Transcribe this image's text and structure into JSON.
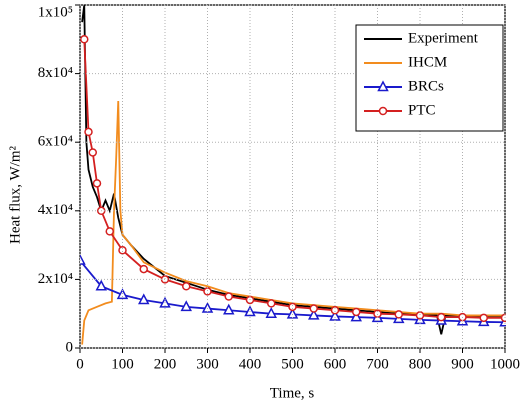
{
  "chart_data": {
    "type": "line",
    "x_label": "Time, s",
    "y_label": "Heat flux, W/m²",
    "xlim": [
      0,
      1000
    ],
    "xticks": [
      0,
      100,
      200,
      300,
      400,
      500,
      600,
      700,
      800,
      900,
      1000
    ],
    "ylim": [
      0,
      100000
    ],
    "yticks": [
      0,
      {
        "value": 20000,
        "label": "2x10⁴"
      },
      {
        "value": 40000,
        "label": "4x10⁴"
      },
      {
        "value": 60000,
        "label": "6x10⁴"
      },
      {
        "value": 80000,
        "label": "8x10⁴"
      },
      {
        "value": 100000,
        "label": "1x10⁵"
      }
    ],
    "grid": true,
    "legend": "top-right",
    "series": [
      {
        "name": "Experiment",
        "color": "#000000",
        "marker": "none",
        "x": [
          5,
          10,
          15,
          20,
          30,
          40,
          50,
          60,
          70,
          80,
          90,
          100,
          120,
          150,
          200,
          250,
          300,
          350,
          400,
          450,
          500,
          550,
          600,
          650,
          700,
          750,
          800,
          840,
          850,
          860,
          900,
          950,
          1000
        ],
        "values": [
          95000,
          100000,
          60000,
          52000,
          47000,
          44000,
          40000,
          43000,
          40000,
          45000,
          38000,
          33000,
          30000,
          26000,
          21000,
          19000,
          17000,
          15500,
          14500,
          13500,
          12500,
          12000,
          11500,
          11000,
          10500,
          10000,
          10000,
          9500,
          4000,
          9500,
          9500,
          9000,
          9000
        ]
      },
      {
        "name": "IHCM",
        "color": "#f28c1e",
        "marker": "none",
        "x": [
          5,
          10,
          20,
          40,
          60,
          75,
          80,
          85,
          90,
          95,
          100,
          120,
          150,
          200,
          250,
          300,
          350,
          400,
          450,
          500,
          550,
          600,
          650,
          700,
          750,
          800,
          850,
          900,
          950,
          1000
        ],
        "values": [
          1000,
          8000,
          11000,
          12000,
          13000,
          13500,
          40000,
          55000,
          72000,
          40000,
          33000,
          30000,
          25000,
          22000,
          19500,
          18000,
          16000,
          15000,
          14000,
          13000,
          12500,
          12000,
          11500,
          11000,
          10500,
          10000,
          10000,
          9500,
          9500,
          9500
        ]
      },
      {
        "name": "BRCs",
        "color": "#1a1acc",
        "marker": "triangle",
        "x": [
          0,
          50,
          100,
          150,
          200,
          250,
          300,
          350,
          400,
          450,
          500,
          550,
          600,
          650,
          700,
          750,
          800,
          850,
          900,
          950,
          1000
        ],
        "values": [
          25500,
          18000,
          15500,
          14000,
          13000,
          12000,
          11500,
          11000,
          10500,
          10000,
          9800,
          9500,
          9200,
          9000,
          8800,
          8500,
          8200,
          8000,
          7800,
          7600,
          7500
        ]
      },
      {
        "name": "PTC",
        "color": "#d42020",
        "marker": "circle",
        "x": [
          10,
          20,
          30,
          40,
          50,
          70,
          100,
          150,
          200,
          250,
          300,
          350,
          400,
          450,
          500,
          550,
          600,
          650,
          700,
          750,
          800,
          850,
          900,
          950,
          1000
        ],
        "values": [
          90000,
          63000,
          57000,
          48000,
          40000,
          34000,
          28500,
          23000,
          20000,
          18000,
          16500,
          15000,
          14000,
          13000,
          12000,
          11500,
          11000,
          10500,
          10000,
          9800,
          9500,
          9000,
          9000,
          8800,
          8800
        ]
      }
    ]
  }
}
